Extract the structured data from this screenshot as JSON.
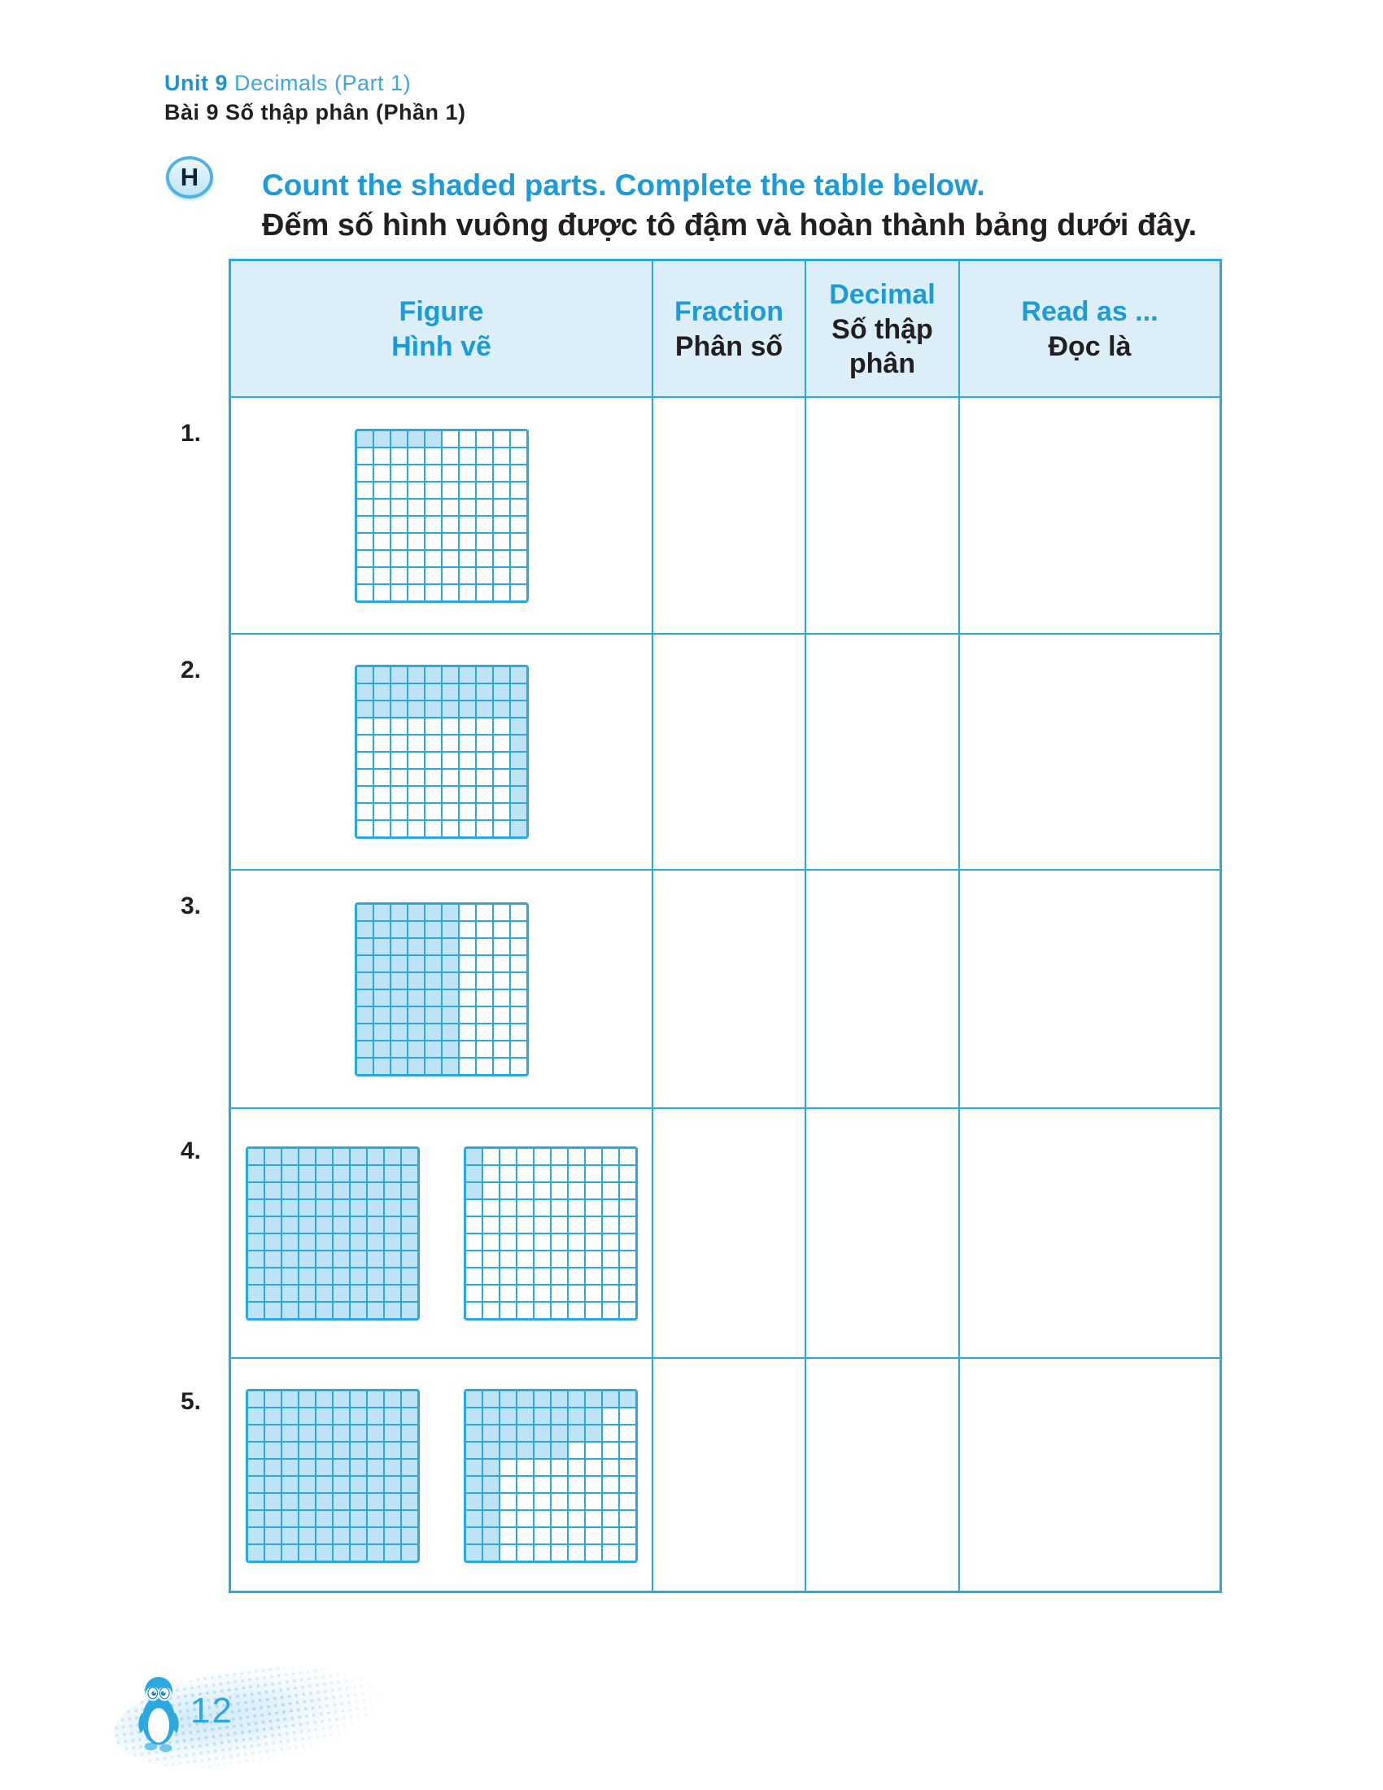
{
  "colors": {
    "accent_blue": "#1B9CD9",
    "grid_line_cyan": "#2BA8E0",
    "shaded_cell_fill": "#BEE3F4",
    "table_header_bg": "#DCEFF9",
    "text_black": "#231F20"
  },
  "header": {
    "unit_label": "Unit 9",
    "unit_title_en": "Decimals (Part 1)",
    "unit_title_vi": "Bài 9 Số thập phân (Phần 1)"
  },
  "exercise": {
    "badge": "H",
    "instruction_en": "Count the shaded parts. Complete the table below.",
    "instruction_vi": "Đếm số hình vuông được tô đậm và hoàn thành bảng dưới đây."
  },
  "table": {
    "columns": [
      {
        "en": "Figure",
        "vi": "Hình vẽ"
      },
      {
        "en": "Fraction",
        "vi": "Phân số"
      },
      {
        "en": "Decimal",
        "vi": "Số thập phân"
      },
      {
        "en": "Read as ...",
        "vi": "Đọc là"
      }
    ],
    "rows": [
      {
        "number": "1.",
        "grids": [
          "g1"
        ],
        "fraction": "",
        "decimal": "",
        "read_as": ""
      },
      {
        "number": "2.",
        "grids": [
          "g2"
        ],
        "fraction": "",
        "decimal": "",
        "read_as": ""
      },
      {
        "number": "3.",
        "grids": [
          "g3"
        ],
        "fraction": "",
        "decimal": "",
        "read_as": ""
      },
      {
        "number": "4.",
        "grids": [
          "g4a",
          "g4b"
        ],
        "fraction": "",
        "decimal": "",
        "read_as": ""
      },
      {
        "number": "5.",
        "grids": [
          "g5a",
          "g5b"
        ],
        "fraction": "",
        "decimal": "",
        "read_as": ""
      }
    ]
  },
  "grids": {
    "g1": {
      "size": 10,
      "shaded_count": 5,
      "pattern": [
        "1111100000",
        "0000000000",
        "0000000000",
        "0000000000",
        "0000000000",
        "0000000000",
        "0000000000",
        "0000000000",
        "0000000000",
        "0000000000"
      ]
    },
    "g2": {
      "size": 10,
      "shaded_count": 37,
      "pattern": [
        "1111111111",
        "1111111111",
        "1111111111",
        "0000000001",
        "0000000001",
        "0000000001",
        "0000000001",
        "0000000001",
        "0000000001",
        "0000000001"
      ]
    },
    "g3": {
      "size": 10,
      "shaded_count": 60,
      "pattern": [
        "1111110000",
        "1111110000",
        "1111110000",
        "1111110000",
        "1111110000",
        "1111110000",
        "1111110000",
        "1111110000",
        "1111110000",
        "1111110000"
      ]
    },
    "g4a": {
      "size": 10,
      "shaded_count": 100,
      "pattern": [
        "1111111111",
        "1111111111",
        "1111111111",
        "1111111111",
        "1111111111",
        "1111111111",
        "1111111111",
        "1111111111",
        "1111111111",
        "1111111111"
      ]
    },
    "g4b": {
      "size": 10,
      "shaded_count": 3,
      "pattern": [
        "1000000000",
        "1000000000",
        "1000000000",
        "0000000000",
        "0000000000",
        "0000000000",
        "0000000000",
        "0000000000",
        "0000000000",
        "0000000000"
      ]
    },
    "g5a": {
      "size": 10,
      "shaded_count": 100,
      "pattern": [
        "1111111111",
        "1111111111",
        "1111111111",
        "1111111111",
        "1111111111",
        "1111111111",
        "1111111111",
        "1111111111",
        "1111111111",
        "1111111111"
      ]
    },
    "g5b": {
      "size": 10,
      "shaded_count": 44,
      "pattern": [
        "1111111111",
        "1111111100",
        "1111111100",
        "1111110000",
        "1100000000",
        "1100000000",
        "1100000000",
        "1100000000",
        "1100000000",
        "1100000000"
      ]
    }
  },
  "footer": {
    "page_number": "12",
    "mascot": "penguin-icon"
  }
}
